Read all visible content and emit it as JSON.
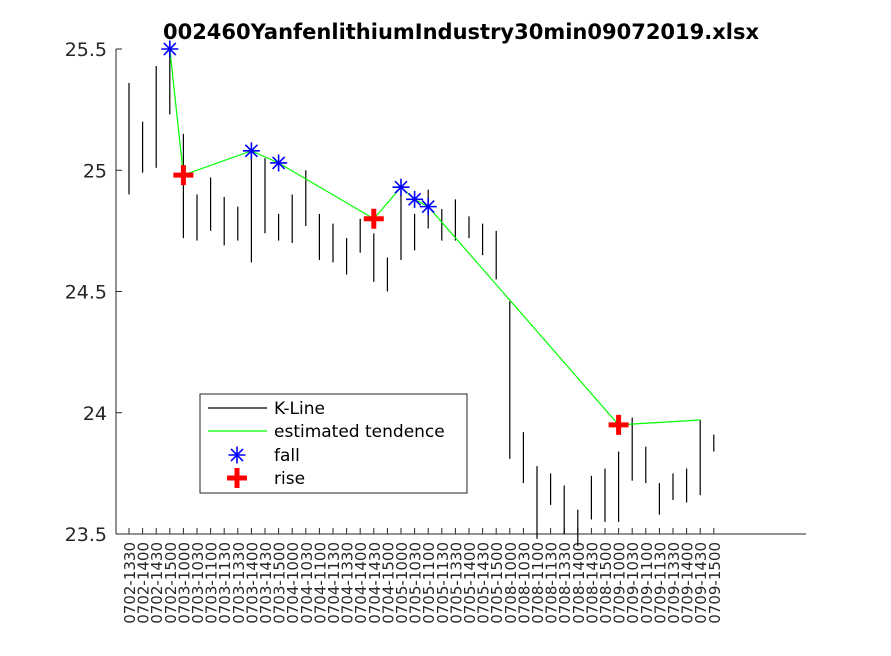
{
  "chart_data": {
    "type": "line",
    "title": "002460YanfenlithiumIndustry30min09072019.xlsx",
    "xlabel": "",
    "ylabel": "",
    "ylim": [
      23.5,
      25.5
    ],
    "yticks": [
      "23.5",
      "24",
      "24.5",
      "25",
      "25.5"
    ],
    "grid": false,
    "legend_placement": "lower-left",
    "categories": [
      "0702-1330",
      "0702-1400",
      "0702-1430",
      "0702-1500",
      "0703-1000",
      "0703-1030",
      "0703-1100",
      "0703-1130",
      "0703-1330",
      "0703-1400",
      "0703-1430",
      "0703-1500",
      "0704-1000",
      "0704-1030",
      "0704-1100",
      "0704-1130",
      "0704-1330",
      "0704-1400",
      "0704-1430",
      "0704-1500",
      "0705-1000",
      "0705-1030",
      "0705-1100",
      "0705-1130",
      "0705-1330",
      "0705-1400",
      "0705-1430",
      "0705-1500",
      "0708-1000",
      "0708-1030",
      "0708-1100",
      "0708-1130",
      "0708-1330",
      "0708-1400",
      "0708-1430",
      "0708-1500",
      "0709-1000",
      "0709-1030",
      "0709-1100",
      "0709-1130",
      "0709-1330",
      "0709-1400",
      "0709-1430",
      "0709-1500"
    ],
    "kline": [
      [
        24.9,
        25.36
      ],
      [
        24.99,
        25.2
      ],
      [
        25.01,
        25.43
      ],
      [
        25.23,
        25.5
      ],
      [
        24.72,
        25.15
      ],
      [
        24.71,
        24.9
      ],
      [
        24.75,
        24.97
      ],
      [
        24.69,
        24.89
      ],
      [
        24.71,
        24.85
      ],
      [
        24.62,
        25.06
      ],
      [
        24.74,
        25.05
      ],
      [
        24.71,
        24.82
      ],
      [
        24.7,
        24.9
      ],
      [
        24.77,
        25.0
      ],
      [
        24.63,
        24.82
      ],
      [
        24.62,
        24.78
      ],
      [
        24.57,
        24.72
      ],
      [
        24.66,
        24.8
      ],
      [
        24.54,
        24.74
      ],
      [
        24.5,
        24.64
      ],
      [
        24.63,
        24.9
      ],
      [
        24.67,
        24.82
      ],
      [
        24.76,
        24.92
      ],
      [
        24.71,
        24.84
      ],
      [
        24.71,
        24.88
      ],
      [
        24.72,
        24.81
      ],
      [
        24.65,
        24.78
      ],
      [
        24.55,
        24.75
      ],
      [
        23.81,
        24.46
      ],
      [
        23.71,
        23.92
      ],
      [
        23.48,
        23.78
      ],
      [
        23.62,
        23.75
      ],
      [
        23.5,
        23.7
      ],
      [
        23.45,
        23.6
      ],
      [
        23.56,
        23.74
      ],
      [
        23.55,
        23.77
      ],
      [
        23.55,
        23.84
      ],
      [
        23.72,
        23.98
      ],
      [
        23.71,
        23.86
      ],
      [
        23.58,
        23.71
      ],
      [
        23.64,
        23.75
      ],
      [
        23.63,
        23.77
      ],
      [
        23.66,
        23.97
      ],
      [
        23.84,
        23.91
      ]
    ],
    "series": [
      {
        "name": "K-Line",
        "color": "#000000"
      },
      {
        "name": "estimated tendence",
        "color": "#00ff00",
        "x": [
          "0702-1500",
          "0703-1000",
          "0703-1400",
          "0703-1500",
          "0704-1430",
          "0705-1000",
          "0705-1030",
          "0705-1100",
          "0709-1000",
          "0709-1430"
        ],
        "values": [
          25.5,
          24.98,
          25.08,
          25.03,
          24.8,
          24.93,
          24.88,
          24.85,
          23.95,
          23.97
        ]
      },
      {
        "name": "fall",
        "color": "#0000ff",
        "marker": "asterisk",
        "x": [
          "0702-1500",
          "0703-1400",
          "0703-1500",
          "0705-1000",
          "0705-1030",
          "0705-1100"
        ],
        "values": [
          25.5,
          25.08,
          25.03,
          24.93,
          24.88,
          24.85
        ]
      },
      {
        "name": "rise",
        "color": "#ff0000",
        "marker": "plus",
        "x": [
          "0703-1000",
          "0704-1430",
          "0709-1000"
        ],
        "values": [
          24.98,
          24.8,
          23.95
        ]
      }
    ]
  }
}
